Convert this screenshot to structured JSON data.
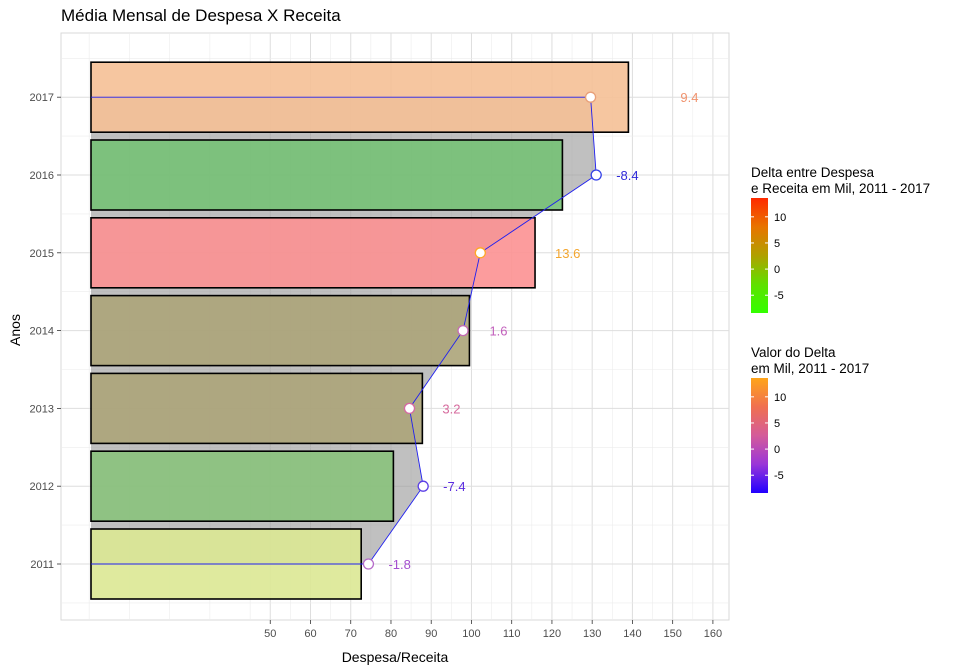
{
  "chart_data": {
    "type": "bar",
    "title": "Média Mensal de Despesa X Receita",
    "xlabel": "Despesa/Receita",
    "ylabel": "Anos",
    "categories": [
      "2011",
      "2012",
      "2013",
      "2014",
      "2015",
      "2016",
      "2017"
    ],
    "x_ticks": [
      50,
      60,
      70,
      80,
      90,
      100,
      110,
      120,
      130,
      140,
      150,
      160
    ],
    "xlim": [
      -2,
      164
    ],
    "series": [
      {
        "name": "Despesa",
        "values": [
          72.6,
          80.6,
          87.8,
          99.5,
          115.8,
          122.6,
          139.0
        ],
        "fill_colors": [
          "#dce894",
          "#89c27c",
          "#aca479",
          "#aca479",
          "#fc9192",
          "#76c176",
          "#f5c096"
        ]
      },
      {
        "name": "Receita",
        "values": [
          74.4,
          88.0,
          84.6,
          97.9,
          102.2,
          131.0,
          129.6
        ],
        "point_colors": [
          "#b56bc9",
          "#5b3fe6",
          "#d668a3",
          "#c56bb5",
          "#ffa726",
          "#3340e8",
          "#e8a079"
        ]
      }
    ],
    "delta_labels": [
      "-1.8",
      "-7.4",
      "3.2",
      "1.6",
      "13.6",
      "-8.4",
      "9.4"
    ],
    "delta_label_colors": [
      "#a44fd0",
      "#5a2be0",
      "#d66a9d",
      "#c25fbc",
      "#f3a62f",
      "#2f2ad9",
      "#f0926d"
    ],
    "legend_position": "right",
    "grid": true,
    "legends": [
      {
        "title_lines": [
          "Delta entre Despesa",
          "e Receita em Mil, 2011 - 2017"
        ],
        "ticks": [
          "10",
          "5",
          "0",
          "-5"
        ],
        "tick_values": [
          10,
          5,
          0,
          -5
        ],
        "range": [
          -8.4,
          13.6
        ],
        "gradient": [
          "#ff2a00",
          "#e87400",
          "#b0a000",
          "#60e000",
          "#33ff00"
        ]
      },
      {
        "title_lines": [
          "Valor do Delta",
          "em Mil, 2011 - 2017"
        ],
        "ticks": [
          "10",
          "5",
          "0",
          "-5"
        ],
        "tick_values": [
          10,
          5,
          0,
          -5
        ],
        "range": [
          -8.4,
          13.6
        ],
        "gradient": [
          "#ffa51a",
          "#f07050",
          "#d45b9a",
          "#9a36d8",
          "#2200ff"
        ]
      }
    ]
  }
}
